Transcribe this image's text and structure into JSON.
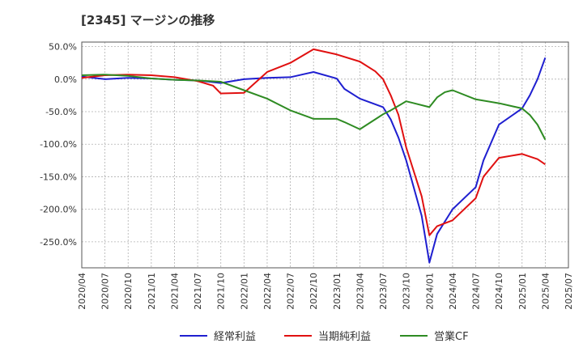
{
  "chart_data": {
    "type": "line",
    "title": "[2345]  マージンの推移",
    "xlabel": "",
    "ylabel": "",
    "ylim": [
      -290,
      57
    ],
    "y_ticks": [
      50,
      0,
      -50,
      -100,
      -150,
      -200,
      -250
    ],
    "y_tick_labels": [
      "50.0%",
      "0.0%",
      "-50.0%",
      "-100.0%",
      "-150.0%",
      "-200.0%",
      "-250.0%"
    ],
    "x_tick_labels": [
      "2020/04",
      "2020/07",
      "2020/10",
      "2021/01",
      "2021/04",
      "2021/07",
      "2021/10",
      "2022/01",
      "2022/04",
      "2022/07",
      "2022/10",
      "2023/01",
      "2023/04",
      "2023/07",
      "2023/10",
      "2024/01",
      "2024/04",
      "2024/07",
      "2024/10",
      "2025/01",
      "2025/04",
      "2025/07"
    ],
    "grid": true,
    "legend_position": "bottom",
    "x": [
      "2020/04",
      "2020/07",
      "2020/10",
      "2021/01",
      "2021/04",
      "2021/07",
      "2021/10",
      "2022/01",
      "2022/04",
      "2022/07",
      "2022/10",
      "2023/01",
      "2023/04",
      "2023/07",
      "2023/10",
      "2024/01",
      "2024/04",
      "2024/07",
      "2024/10",
      "2025/01",
      "2025/04"
    ],
    "series": [
      {
        "name": "経常利益",
        "color": "#1f1fd0",
        "points": [
          [
            "2020/04",
            4
          ],
          [
            "2020/07",
            0
          ],
          [
            "2020/10",
            2
          ],
          [
            "2021/01",
            1
          ],
          [
            "2021/04",
            -1
          ],
          [
            "2021/07",
            -2
          ],
          [
            "2021/10",
            -6
          ],
          [
            "2022/01",
            0
          ],
          [
            "2022/04",
            2
          ],
          [
            "2022/07",
            3
          ],
          [
            "2022/10",
            11
          ],
          [
            "2023/01",
            1
          ],
          [
            "2023/02",
            -15
          ],
          [
            "2023/04",
            -30
          ],
          [
            "2023/07",
            -43
          ],
          [
            "2023/08",
            -62
          ],
          [
            "2023/09",
            -90
          ],
          [
            "2023/10",
            -125
          ],
          [
            "2023/12",
            -210
          ],
          [
            "2024/01",
            -282
          ],
          [
            "2024/02",
            -238
          ],
          [
            "2024/04",
            -200
          ],
          [
            "2024/07",
            -166
          ],
          [
            "2024/08",
            -125
          ],
          [
            "2024/10",
            -70
          ],
          [
            "2025/01",
            -45
          ],
          [
            "2025/02",
            -25
          ],
          [
            "2025/03",
            0
          ],
          [
            "2025/04",
            33
          ]
        ]
      },
      {
        "name": "当期純利益",
        "color": "#e01010",
        "points": [
          [
            "2020/04",
            2
          ],
          [
            "2020/07",
            6
          ],
          [
            "2020/10",
            7
          ],
          [
            "2021/01",
            6
          ],
          [
            "2021/04",
            3
          ],
          [
            "2021/07",
            -3
          ],
          [
            "2021/09",
            -10
          ],
          [
            "2021/10",
            -22
          ],
          [
            "2022/01",
            -21
          ],
          [
            "2022/04",
            11
          ],
          [
            "2022/07",
            25
          ],
          [
            "2022/10",
            46
          ],
          [
            "2023/01",
            38
          ],
          [
            "2023/04",
            27
          ],
          [
            "2023/06",
            12
          ],
          [
            "2023/07",
            0
          ],
          [
            "2023/08",
            -25
          ],
          [
            "2023/09",
            -55
          ],
          [
            "2023/10",
            -105
          ],
          [
            "2023/12",
            -180
          ],
          [
            "2024/01",
            -240
          ],
          [
            "2024/02",
            -226
          ],
          [
            "2024/04",
            -217
          ],
          [
            "2024/07",
            -183
          ],
          [
            "2024/08",
            -150
          ],
          [
            "2024/10",
            -121
          ],
          [
            "2025/01",
            -115
          ],
          [
            "2025/03",
            -123
          ],
          [
            "2025/04",
            -131
          ]
        ]
      },
      {
        "name": "営業CF",
        "color": "#2e8b22",
        "points": [
          [
            "2020/04",
            6
          ],
          [
            "2020/07",
            7
          ],
          [
            "2020/10",
            5
          ],
          [
            "2021/01",
            1
          ],
          [
            "2021/04",
            -1
          ],
          [
            "2021/07",
            -2
          ],
          [
            "2021/10",
            -4
          ],
          [
            "2022/01",
            -17
          ],
          [
            "2022/04",
            -30
          ],
          [
            "2022/07",
            -48
          ],
          [
            "2022/10",
            -61
          ],
          [
            "2023/01",
            -61
          ],
          [
            "2023/02",
            -66
          ],
          [
            "2023/04",
            -77
          ],
          [
            "2023/07",
            -54
          ],
          [
            "2023/08",
            -48
          ],
          [
            "2023/10",
            -34
          ],
          [
            "2024/01",
            -43
          ],
          [
            "2024/02",
            -28
          ],
          [
            "2024/03",
            -20
          ],
          [
            "2024/04",
            -17
          ],
          [
            "2024/07",
            -31
          ],
          [
            "2024/10",
            -37
          ],
          [
            "2025/01",
            -45
          ],
          [
            "2025/02",
            -55
          ],
          [
            "2025/03",
            -70
          ],
          [
            "2025/04",
            -93
          ]
        ]
      }
    ]
  }
}
